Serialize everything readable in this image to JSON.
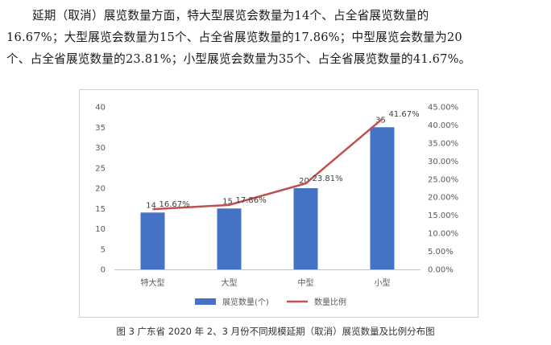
{
  "paragraph": {
    "line1": "延期（取消）展览数量方面，特大型展览会数量为14个、占全省展览数量的",
    "line2": "16.67%；大型展览会数量为15个、占全省展览数量的17.86%；中型展览会数量为20",
    "line3": "个、占全省展览数量的23.81%；小型展览会数量为35个、占全省展览数量的41.67%。"
  },
  "chart_data": {
    "type": "bar",
    "categories": [
      "特大型",
      "大型",
      "中型",
      "小型"
    ],
    "series": [
      {
        "name": "展览数量(个)",
        "kind": "bar",
        "axis": "left",
        "values": [
          14,
          15,
          20,
          35
        ],
        "labels": [
          "14",
          "15",
          "20",
          "35"
        ],
        "color": "#4472C4"
      },
      {
        "name": "数量比例",
        "kind": "line",
        "axis": "right",
        "values": [
          16.67,
          17.86,
          23.81,
          41.67
        ],
        "labels": [
          "16.67%",
          "17.86%",
          "23.81%",
          "41.67%"
        ],
        "color": "#C0504D"
      }
    ],
    "left_axis": {
      "ylim": [
        0,
        40
      ],
      "ticks": [
        "0",
        "5",
        "10",
        "15",
        "20",
        "25",
        "30",
        "35",
        "40"
      ]
    },
    "right_axis": {
      "ylim": [
        0,
        45
      ],
      "ticks": [
        "0.00%",
        "5.00%",
        "10.00%",
        "15.00%",
        "20.00%",
        "25.00%",
        "30.00%",
        "35.00%",
        "40.00%",
        "45.00%"
      ]
    },
    "grid": false,
    "legend_position": "bottom"
  },
  "caption": "图 3  广东省 2020 年 2、3 月份不同规模延期（取消）展览数量及比例分布图"
}
